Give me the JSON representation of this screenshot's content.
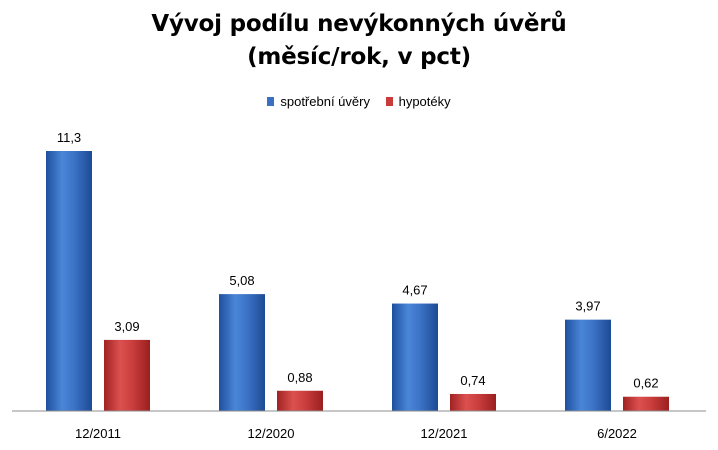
{
  "chart_data": {
    "type": "bar",
    "title_line1": "Vývoj podílu nevýkonných úvěrů",
    "title_line2": "(měsíc/rok, v pct)",
    "categories": [
      "12/2011",
      "12/2020",
      "12/2021",
      "6/2022"
    ],
    "series": [
      {
        "name": "spotřební úvěry",
        "values": [
          11.3,
          5.08,
          4.67,
          3.97
        ],
        "labels": [
          "11,3",
          "5,08",
          "4,67",
          "3,97"
        ],
        "color": "#3a6fc4"
      },
      {
        "name": "hypotéky",
        "values": [
          3.09,
          0.88,
          0.74,
          0.62
        ],
        "labels": [
          "3,09",
          "0,88",
          "0,74",
          "0,62"
        ],
        "color": "#c93b3b"
      }
    ],
    "xlabel": "",
    "ylabel": "",
    "ylim": [
      0,
      12
    ],
    "grid": false,
    "legend_position": "top-center"
  }
}
